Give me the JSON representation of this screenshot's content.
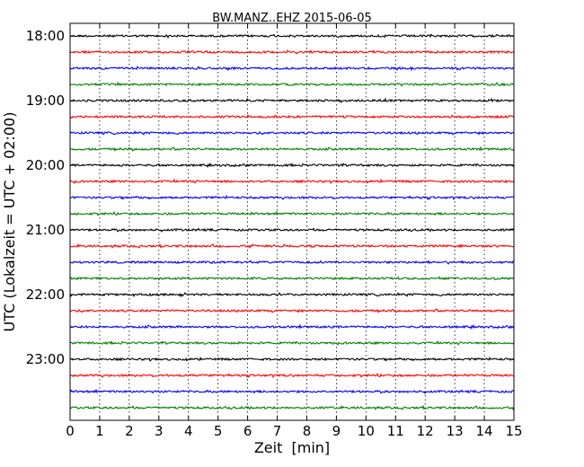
{
  "chart_data": {
    "type": "line",
    "title": "BW.MANZ..EHZ 2015-06-05",
    "xlabel": "Zeit  [min]",
    "ylabel": "UTC (Lokalzeit = UTC + 02:00)",
    "xlim": [
      0,
      15
    ],
    "x_ticks": [
      "0",
      "1",
      "2",
      "3",
      "4",
      "5",
      "6",
      "7",
      "8",
      "9",
      "10",
      "11",
      "12",
      "13",
      "14",
      "15"
    ],
    "y_ticks": [
      "18:00",
      "19:00",
      "20:00",
      "21:00",
      "22:00",
      "23:00"
    ],
    "grid": "vertical-dotted",
    "minutes_per_trace": 15,
    "colors": [
      "#000000",
      "#ff0000",
      "#0000ff",
      "#008000"
    ],
    "traces": [
      {
        "start": "18:00"
      },
      {
        "start": "18:15"
      },
      {
        "start": "18:30"
      },
      {
        "start": "18:45"
      },
      {
        "start": "19:00"
      },
      {
        "start": "19:15"
      },
      {
        "start": "19:30"
      },
      {
        "start": "19:45"
      },
      {
        "start": "20:00"
      },
      {
        "start": "20:15"
      },
      {
        "start": "20:30"
      },
      {
        "start": "20:45"
      },
      {
        "start": "21:00"
      },
      {
        "start": "21:15"
      },
      {
        "start": "21:30"
      },
      {
        "start": "21:45"
      },
      {
        "start": "22:00"
      },
      {
        "start": "22:15"
      },
      {
        "start": "22:30"
      },
      {
        "start": "22:45"
      },
      {
        "start": "23:00"
      },
      {
        "start": "23:15"
      },
      {
        "start": "23:30"
      },
      {
        "start": "23:45"
      }
    ]
  }
}
